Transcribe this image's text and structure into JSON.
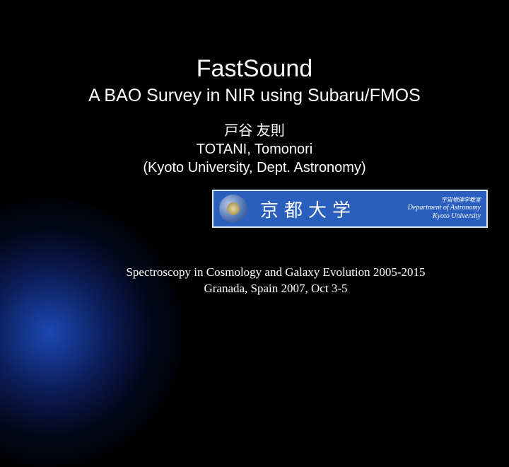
{
  "title": "FastSound",
  "subtitle": "A BAO Survey in NIR using Subaru/FMOS",
  "author": {
    "name_jp": "戸谷 友則",
    "name_en": "TOTANI, Tomonori",
    "affiliation": "(Kyoto University, Dept. Astronomy)"
  },
  "banner": {
    "university_jp": "京都大学",
    "line1_jp": "宇宙物理学教室",
    "dept_en": "Department of Astronomy",
    "univ_en": "Kyoto University",
    "bg_color": "#2a5fbf",
    "border_color": "#dfe8f5"
  },
  "conference": {
    "line1": "Spectroscopy in Cosmology and Galaxy Evolution 2005-2015",
    "line2": "Granada, Spain  2007, Oct 3-5"
  },
  "colors": {
    "background": "#000000",
    "text": "#ffffff",
    "glow": "#1e50c8"
  }
}
